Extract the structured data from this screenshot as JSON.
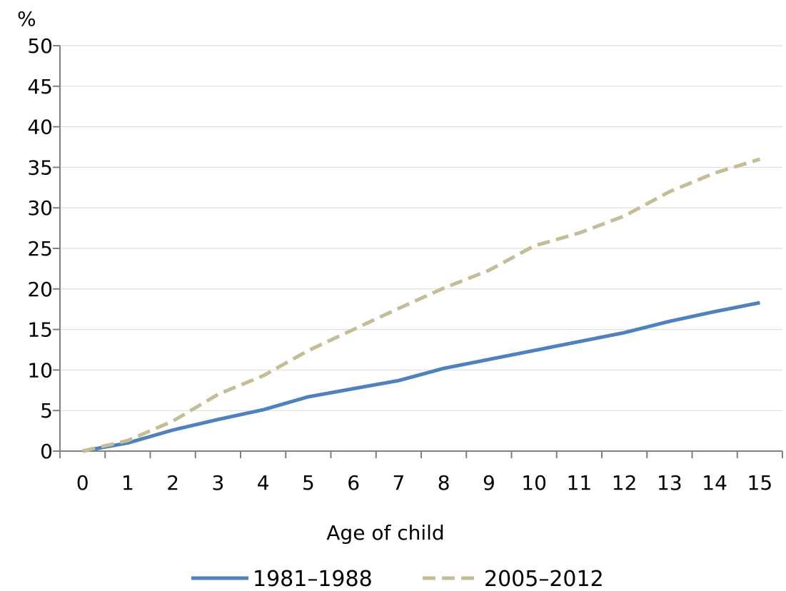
{
  "chart_data": {
    "type": "line",
    "title": "",
    "xlabel": "Age of child",
    "ylabel": "%",
    "categories": [
      "0",
      "1",
      "2",
      "3",
      "4",
      "5",
      "6",
      "7",
      "8",
      "9",
      "10",
      "11",
      "12",
      "13",
      "14",
      "15"
    ],
    "ylim": [
      0,
      50
    ],
    "yticks": [
      "0",
      "5",
      "10",
      "15",
      "20",
      "25",
      "30",
      "35",
      "40",
      "45",
      "50"
    ],
    "grid": true,
    "legend_position": "bottom",
    "series": [
      {
        "name": "1981–1988",
        "color": "#4f81bd",
        "style": "solid",
        "values": [
          0,
          1.0,
          2.6,
          3.9,
          5.1,
          6.7,
          7.7,
          8.7,
          10.2,
          11.3,
          12.4,
          13.5,
          14.6,
          16.0,
          17.2,
          18.3
        ]
      },
      {
        "name": "2005–2012",
        "color": "#c4bd97",
        "style": "dashed",
        "values": [
          0,
          1.3,
          3.7,
          7.0,
          9.3,
          12.4,
          15.0,
          17.6,
          20.1,
          22.3,
          25.3,
          26.9,
          29.0,
          32.0,
          34.3,
          36.0
        ]
      }
    ]
  }
}
